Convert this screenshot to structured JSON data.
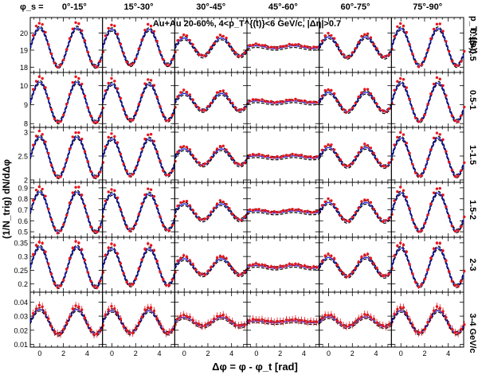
{
  "chart_data": {
    "type": "scatter",
    "annotation": "Au+Au 20-60%, 4<p_T^{(t)}<6 GeV/c, |Δη|>0.7",
    "xlabel": "Δφ = φ - φ_t  [rad]",
    "ylabel": "(1/N_trig) dN/dΔφ",
    "right_axis_title": "p_T^{(a)}",
    "column_prefix": "φ_s = ",
    "columns": [
      "0°-15°",
      "15°-30°",
      "30°-45°",
      "45°-60°",
      "60°-75°",
      "75°-90°"
    ],
    "rows": [
      {
        "label": "0.15-0.5",
        "yticks": [
          "18",
          "19",
          "20"
        ],
        "ylim": [
          17.7,
          20.9
        ]
      },
      {
        "label": "0.5-1",
        "yticks": [
          "8",
          "9",
          "10"
        ],
        "ylim": [
          7.8,
          10.7
        ]
      },
      {
        "label": "1-1.5",
        "yticks": [
          "2",
          "2.5",
          "3"
        ],
        "ylim": [
          1.95,
          3.1
        ]
      },
      {
        "label": "1.5-2",
        "yticks": [
          "0.5",
          "0.6",
          "0.7",
          "0.8",
          "0.9"
        ],
        "ylim": [
          0.45,
          0.95
        ]
      },
      {
        "label": "2-3",
        "yticks": [
          "0.2",
          "0.25",
          "0.3",
          "0.35"
        ],
        "ylim": [
          0.17,
          0.37
        ]
      },
      {
        "label": "3-4",
        "yticks": [
          "0.01",
          "0.02",
          "0.03",
          "0.04"
        ],
        "ylim": [
          0.008,
          0.047
        ]
      }
    ],
    "x_ticks": [
      "0",
      "2",
      "4"
    ],
    "xlim": [
      -0.8,
      5.3
    ],
    "unit_label": "GeV/c",
    "series": [
      {
        "color": "#e8141d",
        "marker": "point-with-errorbar"
      },
      {
        "color": "#1414d4",
        "style": "solid"
      },
      {
        "color": "#000000",
        "style": "dashed"
      }
    ],
    "amplitude_by_row_col": [
      [
        0.85,
        0.78,
        0.4,
        0.06,
        0.45,
        0.82
      ],
      [
        0.88,
        0.8,
        0.38,
        0.05,
        0.43,
        0.84
      ],
      [
        0.88,
        0.8,
        0.36,
        0.05,
        0.42,
        0.84
      ],
      [
        0.88,
        0.8,
        0.36,
        0.05,
        0.42,
        0.84
      ],
      [
        0.88,
        0.8,
        0.36,
        0.06,
        0.42,
        0.84
      ],
      [
        0.55,
        0.5,
        0.2,
        0.04,
        0.22,
        0.5
      ]
    ],
    "n_points": 24
  }
}
